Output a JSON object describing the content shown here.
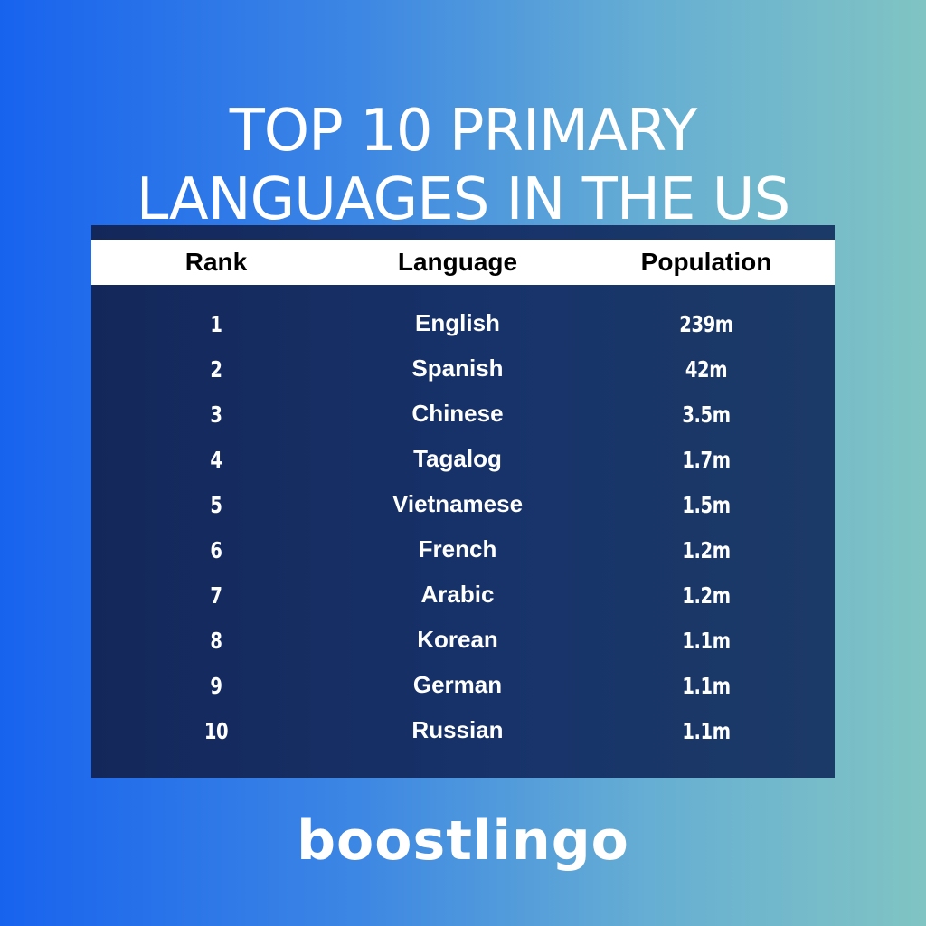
{
  "title": {
    "line1": "TOP 10 PRIMARY",
    "line2": "LANGUAGES IN THE US"
  },
  "table": {
    "headers": {
      "rank": "Rank",
      "language": "Language",
      "population": "Population"
    },
    "rows": [
      {
        "rank": "1",
        "language": "English",
        "population": "239m"
      },
      {
        "rank": "2",
        "language": "Spanish",
        "population": "42m"
      },
      {
        "rank": "3",
        "language": "Chinese",
        "population": "3.5m"
      },
      {
        "rank": "4",
        "language": "Tagalog",
        "population": "1.7m"
      },
      {
        "rank": "5",
        "language": "Vietnamese",
        "population": "1.5m"
      },
      {
        "rank": "6",
        "language": "French",
        "population": "1.2m"
      },
      {
        "rank": "7",
        "language": "Arabic",
        "population": "1.2m"
      },
      {
        "rank": "8",
        "language": "Korean",
        "population": "1.1m"
      },
      {
        "rank": "9",
        "language": "German",
        "population": "1.1m"
      },
      {
        "rank": "10",
        "language": "Russian",
        "population": "1.1m"
      }
    ]
  },
  "brand": {
    "name": "boostlingo"
  },
  "colors": {
    "background_left": "#1863ee",
    "background_right": "#80c4c3",
    "table_background": "#14275a",
    "header_background": "#ffffff",
    "text_light": "#ffffff",
    "text_dark": "#000000"
  }
}
